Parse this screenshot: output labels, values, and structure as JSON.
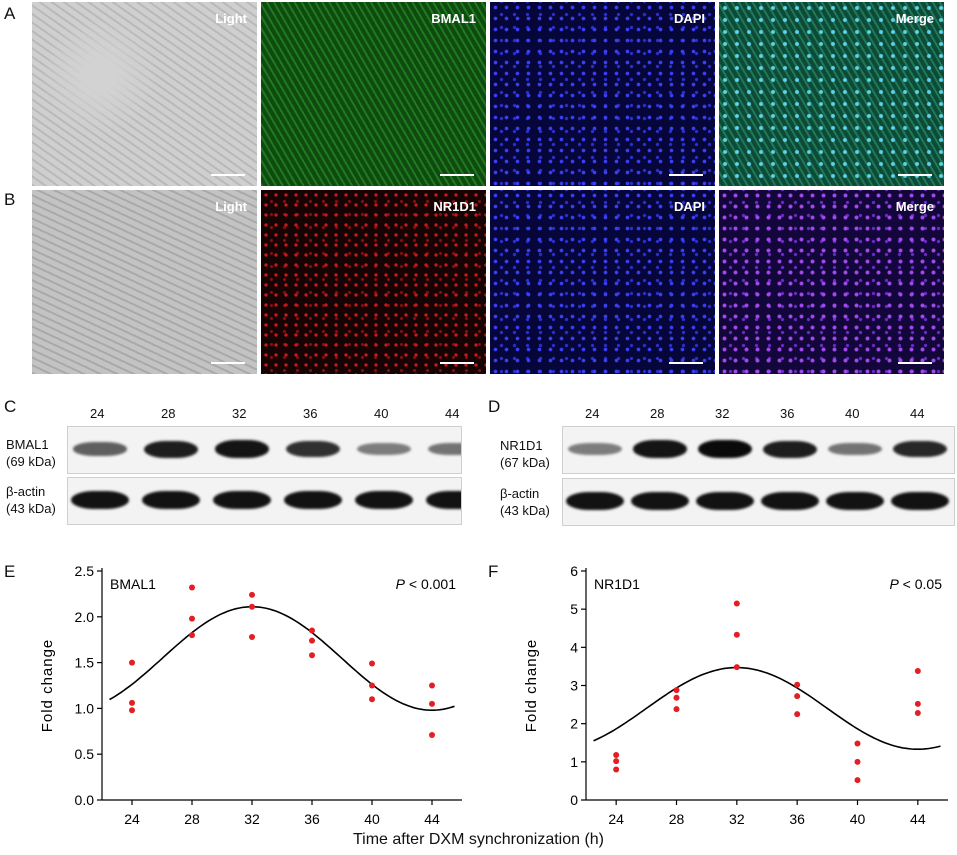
{
  "panel_letters": [
    "A",
    "B",
    "C",
    "D",
    "E",
    "F"
  ],
  "rowA_labels": [
    "Light",
    "BMAL1",
    "DAPI",
    "Merge"
  ],
  "rowB_labels": [
    "Light",
    "NR1D1",
    "DAPI",
    "Merge"
  ],
  "blotC": {
    "lanes": [
      "24",
      "28",
      "32",
      "36",
      "40",
      "44"
    ],
    "top_label": "BMAL1",
    "top_kda": "(69 kDa)",
    "bottom_label": "β-actin",
    "bottom_kda": "(43 kDa)",
    "top_intensity": [
      0.55,
      0.9,
      0.95,
      0.8,
      0.4,
      0.45
    ]
  },
  "blotD": {
    "lanes": [
      "24",
      "28",
      "32",
      "36",
      "40",
      "44"
    ],
    "top_label": "NR1D1",
    "top_kda": "(67 kDa)",
    "bottom_label": "β-actin",
    "bottom_kda": "(43 kDa)",
    "top_intensity": [
      0.4,
      0.95,
      1.0,
      0.9,
      0.45,
      0.85
    ]
  },
  "shared_xlabel": "Time after DXM synchronization (h)",
  "chart_data": [
    {
      "type": "scatter",
      "title": "BMAL1",
      "p_label": "P",
      "p_value": " < 0.001",
      "ylabel": "Fold change",
      "xlabel": "",
      "x_ticks": [
        "24",
        "28",
        "32",
        "36",
        "40",
        "44"
      ],
      "y_ticks": [
        "0.0",
        "0.5",
        "1.0",
        "1.5",
        "2.0",
        "2.5"
      ],
      "ylim": [
        0,
        2.5
      ],
      "xlim": [
        22,
        46
      ],
      "points": [
        [
          24,
          1.5
        ],
        [
          24,
          1.06
        ],
        [
          24,
          0.98
        ],
        [
          28,
          2.32
        ],
        [
          28,
          1.98
        ],
        [
          28,
          1.8
        ],
        [
          32,
          2.24
        ],
        [
          32,
          2.11
        ],
        [
          32,
          1.78
        ],
        [
          36,
          1.85
        ],
        [
          36,
          1.74
        ],
        [
          36,
          1.58
        ],
        [
          40,
          1.49
        ],
        [
          40,
          1.25
        ],
        [
          40,
          1.1
        ],
        [
          44,
          1.25
        ],
        [
          44,
          1.05
        ],
        [
          44,
          0.71
        ]
      ],
      "fit": {
        "mesor": 1.545,
        "amplitude": 0.565,
        "period": 24,
        "peak": 32,
        "x_range": [
          22.5,
          45.5
        ]
      }
    },
    {
      "type": "scatter",
      "title": "NR1D1",
      "p_label": "P",
      "p_value": " < 0.05",
      "ylabel": "Fold change",
      "xlabel": "",
      "x_ticks": [
        "24",
        "28",
        "32",
        "36",
        "40",
        "44"
      ],
      "y_ticks": [
        "0",
        "1",
        "2",
        "3",
        "4",
        "5",
        "6"
      ],
      "ylim": [
        0,
        6
      ],
      "xlim": [
        22,
        46
      ],
      "points": [
        [
          24,
          1.18
        ],
        [
          24,
          1.02
        ],
        [
          24,
          0.8
        ],
        [
          28,
          2.88
        ],
        [
          28,
          2.68
        ],
        [
          28,
          2.38
        ],
        [
          32,
          5.15
        ],
        [
          32,
          4.33
        ],
        [
          32,
          3.48
        ],
        [
          36,
          3.02
        ],
        [
          36,
          2.72
        ],
        [
          36,
          2.25
        ],
        [
          40,
          1.48
        ],
        [
          40,
          1.0
        ],
        [
          40,
          0.52
        ],
        [
          44,
          3.38
        ],
        [
          44,
          2.52
        ],
        [
          44,
          2.28
        ]
      ],
      "fit": {
        "mesor": 2.4,
        "amplitude": 1.07,
        "period": 24,
        "peak": 32,
        "x_range": [
          22.5,
          45.5
        ]
      }
    }
  ]
}
